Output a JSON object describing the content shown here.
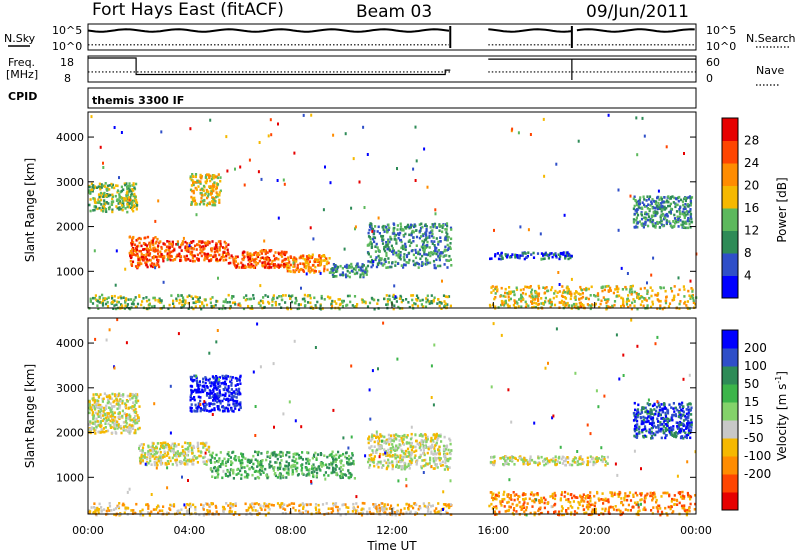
{
  "header": {
    "station": "Fort Hays East (fitACF)",
    "beam": "Beam 03",
    "date": "09/Jun/2011"
  },
  "side_labels": {
    "nsky": "N.Sky",
    "nsearch": "N.Search",
    "freq_line1": "Freq.",
    "freq_line2": "[MHz]",
    "nave": "Nave",
    "cpid": "CPID"
  },
  "strip_ticks": {
    "noise_top": "10^5",
    "noise_bottom": "10^0",
    "freq_top": "18",
    "freq_bottom": "8",
    "nave_top": "60",
    "nave_bottom": "0"
  },
  "cpid_text": "themis 3300 IF",
  "x_axis": {
    "title": "Time UT",
    "ticks": [
      "00:00",
      "04:00",
      "08:00",
      "12:00",
      "16:00",
      "20:00",
      "00:00"
    ],
    "range_hours": [
      0,
      24
    ]
  },
  "power_colorbar": {
    "label": "Power [dB]",
    "ticks": [
      "4",
      "8",
      "12",
      "16",
      "20",
      "24",
      "28"
    ],
    "colors": [
      "#0000ff",
      "#2f4fc8",
      "#2e8b57",
      "#5cb85c",
      "#f5b800",
      "#ff8c00",
      "#ff4500",
      "#e60000"
    ]
  },
  "velocity_colorbar": {
    "label_main": "Velocity [m s",
    "label_sup": "-1",
    "label_end": "]",
    "ticks": [
      "200",
      "100",
      "50",
      "15",
      "-15",
      "-50",
      "-100",
      "-200"
    ],
    "colors": [
      "#0000ff",
      "#2f4fc8",
      "#2e8b57",
      "#3cb54a",
      "#84d26a",
      "#c8c8c8",
      "#f5b800",
      "#ff8c00",
      "#ff4500",
      "#e60000"
    ]
  },
  "chart_data": [
    {
      "type": "line",
      "panel": "noise",
      "ylabel_left": "N.Sky",
      "ylabel_right": "N.Search",
      "y_ticks": [
        "10^0",
        "10^5"
      ],
      "data_gaps_hours": [
        [
          14.3,
          15.8
        ],
        [
          19.1,
          19.3
        ]
      ],
      "series": [
        {
          "name": "N.Sky",
          "style": "solid",
          "level": 0.75
        },
        {
          "name": "N.Search",
          "style": "dotted",
          "level": 0.2
        }
      ]
    },
    {
      "type": "line",
      "panel": "frequency",
      "ylabel_left": "Freq. [MHz]",
      "ylabel_right": "Nave",
      "y_ticks_left": [
        "8",
        "18"
      ],
      "y_ticks_right": [
        "0",
        "60"
      ],
      "series": [
        {
          "name": "Freq.",
          "style": "solid",
          "x": [
            0,
            1.9,
            1.9,
            14.1,
            14.1,
            14.3
          ],
          "y": [
            18,
            18,
            10.5,
            10.5,
            12.5,
            12.5
          ]
        },
        {
          "name": "Nave",
          "style": "dotted",
          "x": [
            0,
            14.3
          ],
          "y": [
            22,
            22
          ]
        }
      ]
    },
    {
      "type": "heatmap",
      "panel": "power",
      "xlabel": "Time UT",
      "ylabel": "Slant Range [km]",
      "xlim": [
        0,
        24
      ],
      "ylim": [
        180,
        4560
      ],
      "y_ticks": [
        1000,
        2000,
        3000,
        4000
      ],
      "colorbar_label": "Power [dB]",
      "colorbar_ticks": [
        4,
        8,
        12,
        16,
        20,
        24,
        28
      ],
      "scatter_regions": [
        {
          "t": [
            0.0,
            1.9
          ],
          "r": [
            2350,
            3000
          ],
          "level": 3
        },
        {
          "t": [
            1.6,
            2.8
          ],
          "r": [
            1100,
            1800
          ],
          "level": 6
        },
        {
          "t": [
            2.8,
            5.5
          ],
          "r": [
            1250,
            1700
          ],
          "level": 6
        },
        {
          "t": [
            4.0,
            5.2
          ],
          "r": [
            2500,
            3200
          ],
          "level": 4
        },
        {
          "t": [
            5.5,
            7.8
          ],
          "r": [
            1100,
            1500
          ],
          "level": 6
        },
        {
          "t": [
            7.8,
            9.5
          ],
          "r": [
            1000,
            1400
          ],
          "level": 5
        },
        {
          "t": [
            9.5,
            11.0
          ],
          "r": [
            900,
            1200
          ],
          "level": 2
        },
        {
          "t": [
            11.0,
            14.3
          ],
          "r": [
            1100,
            2100
          ],
          "level": 2
        },
        {
          "t": [
            0.0,
            14.3
          ],
          "r": [
            180,
            500
          ],
          "level": 3
        },
        {
          "t": [
            15.8,
            19.1
          ],
          "r": [
            1300,
            1450
          ],
          "level": 1
        },
        {
          "t": [
            15.8,
            24.0
          ],
          "r": [
            180,
            700
          ],
          "level": 4
        },
        {
          "t": [
            21.5,
            23.8
          ],
          "r": [
            2000,
            2700
          ],
          "level": 2
        }
      ]
    },
    {
      "type": "heatmap",
      "panel": "velocity",
      "xlabel": "Time UT",
      "ylabel": "Slant Range [km]",
      "xlim": [
        0,
        24
      ],
      "ylim": [
        180,
        4560
      ],
      "y_ticks": [
        1000,
        2000,
        3000,
        4000
      ],
      "colorbar_label": "Velocity [m s-1]",
      "colorbar_ticks": [
        200,
        100,
        50,
        15,
        -15,
        -50,
        -100,
        -200
      ],
      "scatter_regions": [
        {
          "t": [
            0.0,
            2.0
          ],
          "r": [
            2000,
            2900
          ],
          "level": 5
        },
        {
          "t": [
            2.0,
            4.8
          ],
          "r": [
            1300,
            1800
          ],
          "level": 5
        },
        {
          "t": [
            4.8,
            10.5
          ],
          "r": [
            1000,
            1600
          ],
          "level": 3
        },
        {
          "t": [
            4.0,
            6.0
          ],
          "r": [
            2500,
            3300
          ],
          "level": 0
        },
        {
          "t": [
            0.0,
            14.3
          ],
          "r": [
            180,
            450
          ],
          "level": 6
        },
        {
          "t": [
            11.0,
            14.3
          ],
          "r": [
            1200,
            2000
          ],
          "level": 5
        },
        {
          "t": [
            15.8,
            20.5
          ],
          "r": [
            1300,
            1500
          ],
          "level": 5
        },
        {
          "t": [
            15.8,
            24.0
          ],
          "r": [
            180,
            700
          ],
          "level": 7
        },
        {
          "t": [
            21.5,
            23.8
          ],
          "r": [
            1900,
            2700
          ],
          "level": 1
        }
      ]
    }
  ]
}
